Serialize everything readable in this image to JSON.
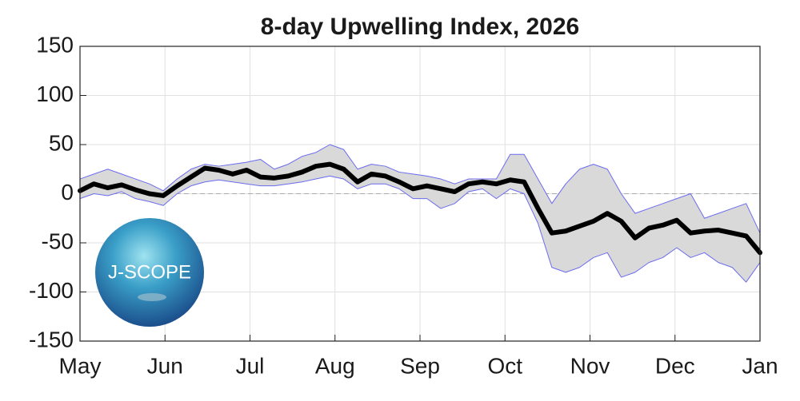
{
  "chart_data": {
    "type": "band-line",
    "title": "8-day Upwelling Index, 2026",
    "logo_text": "J-SCOPE",
    "xticks": [
      "May",
      "Jun",
      "Jul",
      "Aug",
      "Sep",
      "Oct",
      "Nov",
      "Dec",
      "Jan"
    ],
    "ylim": [
      -150,
      150
    ],
    "yticks": [
      -150,
      -100,
      -50,
      0,
      50,
      100,
      150
    ],
    "grid": true,
    "band_fill": "#d9d9d9",
    "series": [
      {
        "color": "#000000",
        "values": [
          3,
          10,
          6,
          9,
          4,
          0,
          -2,
          8,
          17,
          26,
          24,
          20,
          24,
          17,
          16,
          18,
          22,
          28,
          30,
          25,
          12,
          20,
          18,
          12,
          5,
          8,
          5,
          2,
          10,
          12,
          10,
          14,
          12,
          -15,
          -40,
          -38,
          -33,
          -28,
          -20,
          -28,
          -45,
          -35,
          -32,
          -27,
          -40,
          -38,
          -37,
          -40,
          -43,
          -60
        ]
      },
      {
        "color": "#6b6bf0",
        "values": [
          15,
          20,
          25,
          20,
          15,
          10,
          3,
          15,
          25,
          30,
          28,
          30,
          32,
          35,
          25,
          30,
          38,
          42,
          50,
          45,
          25,
          30,
          28,
          22,
          20,
          18,
          15,
          10,
          15,
          15,
          15,
          40,
          40,
          15,
          -10,
          10,
          25,
          30,
          25,
          0,
          -20,
          -15,
          -10,
          -5,
          0,
          -25,
          -20,
          -15,
          -10,
          -40
        ]
      },
      {
        "color": "#6b6bf0",
        "values": [
          -5,
          0,
          -2,
          2,
          -5,
          -8,
          -12,
          0,
          8,
          12,
          14,
          12,
          10,
          8,
          8,
          10,
          12,
          15,
          18,
          15,
          5,
          10,
          10,
          5,
          -5,
          -5,
          -15,
          -10,
          2,
          5,
          -5,
          5,
          0,
          -30,
          -75,
          -80,
          -75,
          -65,
          -60,
          -85,
          -80,
          -70,
          -65,
          -55,
          -65,
          -60,
          -70,
          -75,
          -90,
          -70
        ]
      }
    ]
  }
}
